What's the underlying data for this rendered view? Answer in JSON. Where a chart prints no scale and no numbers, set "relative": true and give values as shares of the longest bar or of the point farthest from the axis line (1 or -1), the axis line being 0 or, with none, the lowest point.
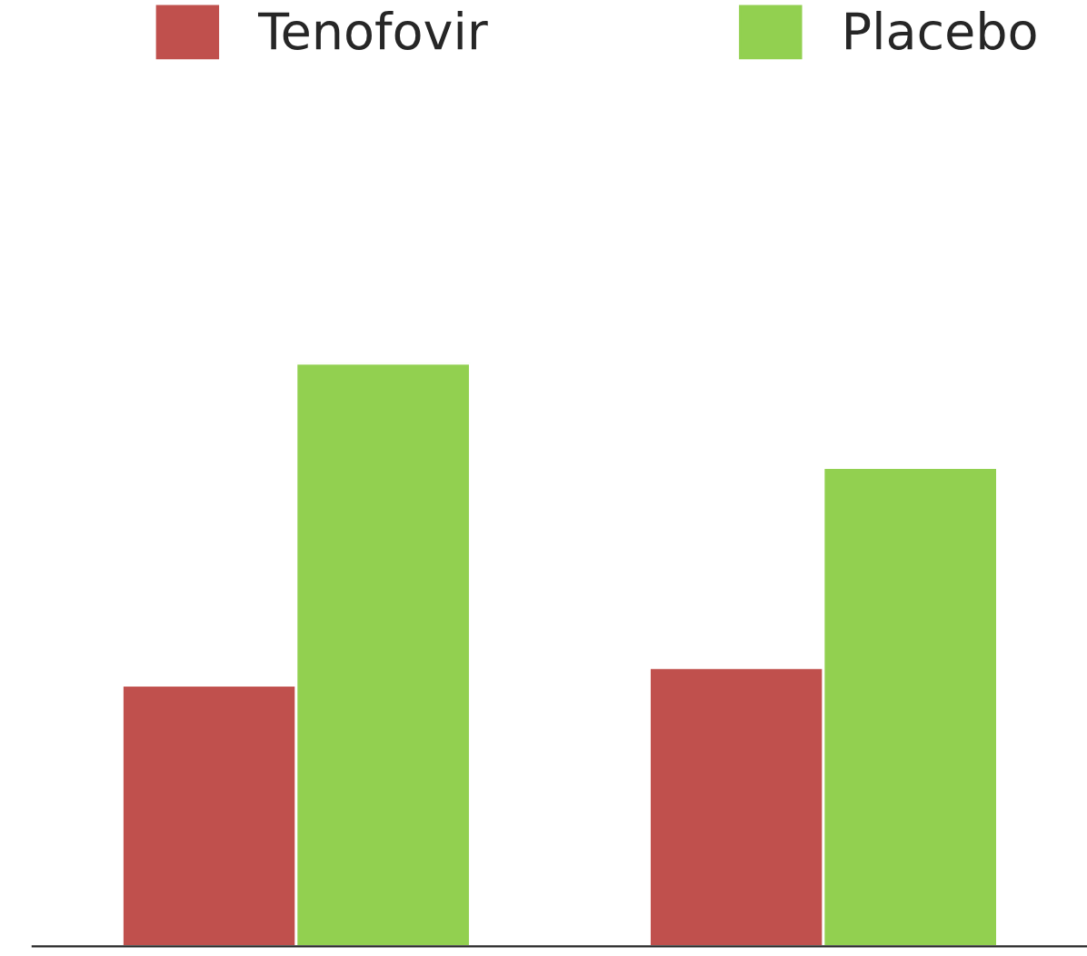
{
  "chart_data": {
    "type": "bar",
    "relative": true,
    "categories": [
      null,
      null
    ],
    "series": [
      {
        "name": "Tenofovir",
        "color": "#c0504d",
        "values": [
          0.448,
          0.478
        ]
      },
      {
        "name": "Placebo",
        "color": "#92d050",
        "values": [
          1,
          0.821
        ]
      }
    ],
    "legend": "top",
    "grid": false
  }
}
